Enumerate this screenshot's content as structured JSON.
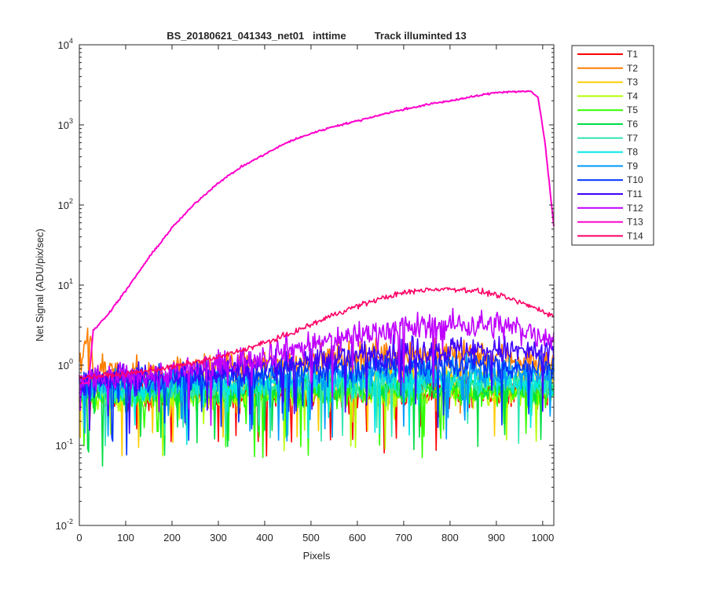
{
  "chart_data": {
    "type": "line",
    "title": "BS_20180621_041343_net01   inttime          Track illuminted 13",
    "xlabel": "Pixels",
    "ylabel": "Net Signal (ADU/pix/sec)",
    "xlim": [
      0,
      1024
    ],
    "ylim": [
      0.01,
      10000
    ],
    "yscale": "log",
    "grid": false,
    "legend_position": "outside-top-right",
    "x_ticks": [
      0,
      100,
      200,
      300,
      400,
      500,
      600,
      700,
      800,
      900,
      1000
    ],
    "y_ticks": [
      {
        "value": 0.01,
        "base": "10",
        "exp": "-2"
      },
      {
        "value": 0.1,
        "base": "10",
        "exp": "-1"
      },
      {
        "value": 1,
        "base": "10",
        "exp": "0"
      },
      {
        "value": 10,
        "base": "10",
        "exp": "1"
      },
      {
        "value": 100,
        "base": "10",
        "exp": "2"
      },
      {
        "value": 1000,
        "base": "10",
        "exp": "3"
      },
      {
        "value": 10000,
        "base": "10",
        "exp": "4"
      }
    ],
    "series": [
      {
        "name": "T1",
        "color": "#ff0000",
        "x": [
          0,
          100,
          200,
          300,
          400,
          500,
          600,
          700,
          800,
          900,
          1024
        ],
        "values": [
          0.45,
          0.42,
          0.42,
          0.42,
          0.43,
          0.44,
          0.45,
          0.45,
          0.45,
          0.44,
          0.42
        ]
      },
      {
        "name": "T2",
        "color": "#ff7f00",
        "x": [
          0,
          15,
          25,
          30,
          100,
          200,
          300,
          400,
          500,
          600,
          700,
          800,
          900,
          1024
        ],
        "values": [
          1.0,
          1.9,
          2.0,
          0.8,
          0.8,
          0.85,
          0.9,
          1.0,
          1.15,
          1.35,
          1.4,
          1.35,
          1.25,
          1.05
        ]
      },
      {
        "name": "T3",
        "color": "#ffcc00",
        "x": [
          0,
          100,
          200,
          300,
          400,
          500,
          600,
          700,
          800,
          900,
          1024
        ],
        "values": [
          0.5,
          0.5,
          0.52,
          0.55,
          0.6,
          0.65,
          0.7,
          0.72,
          0.72,
          0.7,
          0.65
        ]
      },
      {
        "name": "T4",
        "color": "#b3ff00",
        "x": [
          0,
          100,
          200,
          300,
          400,
          500,
          600,
          700,
          800,
          900,
          1024
        ],
        "values": [
          0.4,
          0.4,
          0.4,
          0.42,
          0.43,
          0.45,
          0.45,
          0.46,
          0.46,
          0.45,
          0.43
        ]
      },
      {
        "name": "T5",
        "color": "#33ff00",
        "x": [
          0,
          100,
          200,
          300,
          400,
          500,
          600,
          700,
          800,
          900,
          1024
        ],
        "values": [
          0.42,
          0.42,
          0.42,
          0.43,
          0.45,
          0.46,
          0.47,
          0.48,
          0.48,
          0.47,
          0.45
        ]
      },
      {
        "name": "T6",
        "color": "#00dd44",
        "x": [
          0,
          100,
          200,
          300,
          400,
          500,
          600,
          700,
          800,
          900,
          1024
        ],
        "values": [
          0.45,
          0.45,
          0.46,
          0.48,
          0.5,
          0.52,
          0.53,
          0.54,
          0.54,
          0.53,
          0.5
        ]
      },
      {
        "name": "T7",
        "color": "#33e6b3",
        "x": [
          0,
          100,
          200,
          300,
          400,
          500,
          600,
          700,
          800,
          900,
          1024
        ],
        "values": [
          0.48,
          0.48,
          0.5,
          0.52,
          0.54,
          0.56,
          0.58,
          0.6,
          0.6,
          0.58,
          0.55
        ]
      },
      {
        "name": "T8",
        "color": "#00e6e6",
        "x": [
          0,
          100,
          200,
          300,
          400,
          500,
          600,
          700,
          800,
          900,
          1024
        ],
        "values": [
          0.52,
          0.52,
          0.55,
          0.58,
          0.6,
          0.63,
          0.66,
          0.68,
          0.68,
          0.66,
          0.62
        ]
      },
      {
        "name": "T9",
        "color": "#0099ff",
        "x": [
          0,
          100,
          200,
          300,
          400,
          500,
          600,
          700,
          800,
          900,
          1024
        ],
        "values": [
          0.55,
          0.56,
          0.6,
          0.65,
          0.7,
          0.75,
          0.8,
          0.82,
          0.82,
          0.8,
          0.75
        ]
      },
      {
        "name": "T10",
        "color": "#0033ff",
        "x": [
          0,
          100,
          200,
          300,
          400,
          500,
          600,
          700,
          800,
          900,
          1024
        ],
        "values": [
          0.6,
          0.62,
          0.68,
          0.75,
          0.82,
          0.9,
          0.98,
          1.02,
          1.02,
          1.0,
          0.92
        ]
      },
      {
        "name": "T11",
        "color": "#4000ff",
        "x": [
          0,
          100,
          200,
          300,
          400,
          500,
          600,
          700,
          800,
          900,
          1024
        ],
        "values": [
          0.65,
          0.68,
          0.75,
          0.85,
          0.98,
          1.15,
          1.35,
          1.5,
          1.55,
          1.55,
          1.4
        ]
      },
      {
        "name": "T12",
        "color": "#bf00ff",
        "x": [
          0,
          100,
          200,
          300,
          400,
          500,
          600,
          700,
          800,
          900,
          950,
          1024
        ],
        "values": [
          0.65,
          0.7,
          0.8,
          1.0,
          1.35,
          1.8,
          2.4,
          2.9,
          3.2,
          3.2,
          2.8,
          2.2
        ]
      },
      {
        "name": "T13",
        "color": "#ff00cc",
        "x": [
          0,
          20,
          30,
          60,
          100,
          150,
          200,
          250,
          300,
          350,
          400,
          450,
          500,
          550,
          600,
          650,
          700,
          750,
          800,
          850,
          900,
          950,
          975,
          990,
          1005,
          1024
        ],
        "values": [
          0.6,
          0.6,
          2.7,
          4.2,
          8.5,
          22,
          52,
          105,
          190,
          300,
          430,
          610,
          780,
          960,
          1120,
          1340,
          1560,
          1790,
          2000,
          2250,
          2550,
          2620,
          2600,
          2200,
          600,
          55
        ]
      },
      {
        "name": "T14",
        "color": "#ff0066",
        "x": [
          0,
          100,
          200,
          300,
          400,
          450,
          500,
          550,
          600,
          650,
          700,
          750,
          800,
          850,
          900,
          950,
          1000,
          1024
        ],
        "values": [
          0.7,
          0.78,
          0.95,
          1.25,
          1.9,
          2.4,
          3.2,
          4.3,
          5.5,
          6.8,
          8.0,
          8.8,
          9.0,
          8.6,
          7.6,
          6.1,
          4.8,
          4.0
        ]
      }
    ]
  }
}
